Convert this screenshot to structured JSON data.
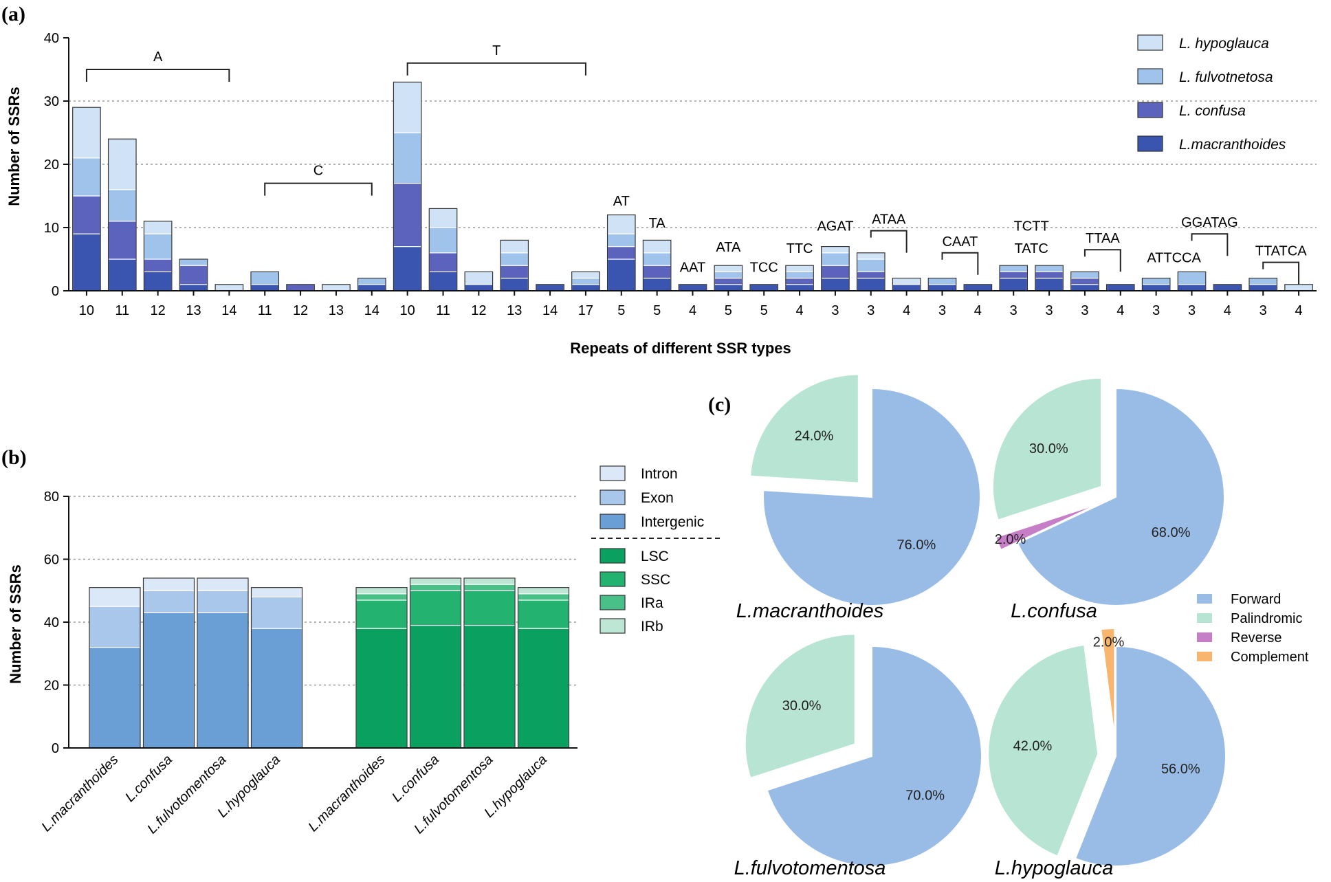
{
  "panel_labels": {
    "a": "(a)",
    "b": "(b)",
    "c": "(c)"
  },
  "colors": {
    "hypoglauca": "#cfe2f6",
    "fulvotnetosa": "#9fc3ea",
    "confusa": "#5b63bd",
    "macranthoides": "#3a55b0",
    "intron": "#dbe8f7",
    "exon": "#a8c7ea",
    "intergenic": "#6a9fd6",
    "lsc": "#0aa05f",
    "ssc": "#24b270",
    "ira": "#48c088",
    "irb": "#bde6d4",
    "forward": "#99bce6",
    "palindromic": "#b7e4d3",
    "reverse": "#c67fc6",
    "complement": "#f7b56e"
  },
  "chart_data": [
    {
      "id": "a",
      "type": "bar",
      "stacked": true,
      "title": "",
      "xlabel": "Repeats of different SSR types",
      "ylabel": "Number of SSRs",
      "ylim": [
        0,
        40
      ],
      "yticks": [
        0,
        10,
        20,
        30,
        40
      ],
      "grid": "dotted horizontal at 10, 20, 30",
      "legend": "top-right",
      "categories": [
        "10",
        "11",
        "12",
        "13",
        "14",
        "11",
        "12",
        "13",
        "14",
        "10",
        "11",
        "12",
        "13",
        "14",
        "17",
        "5",
        "5",
        "4",
        "5",
        "5",
        "4",
        "3",
        "3",
        "4",
        "3",
        "4",
        "3",
        "3",
        "3",
        "4",
        "3",
        "3",
        "4",
        "3",
        "4"
      ],
      "series": [
        {
          "name": "L.macranthoides",
          "color_key": "macranthoides",
          "values": [
            9,
            5,
            3,
            1,
            0,
            1,
            0,
            0,
            1,
            7,
            3,
            1,
            2,
            1,
            1,
            5,
            2,
            1,
            1,
            1,
            1,
            2,
            2,
            1,
            1,
            1,
            2,
            2,
            1,
            1,
            1,
            1,
            1,
            1,
            0
          ]
        },
        {
          "name": "L. confusa",
          "color_key": "confusa",
          "values": [
            6,
            6,
            2,
            3,
            0,
            0,
            1,
            0,
            0,
            10,
            3,
            0,
            2,
            0,
            0,
            2,
            2,
            0,
            1,
            0,
            1,
            2,
            1,
            0,
            0,
            0,
            1,
            1,
            1,
            0,
            0,
            0,
            0,
            0,
            0
          ]
        },
        {
          "name": "L. fulvotnetosa",
          "color_key": "fulvotnetosa",
          "values": [
            6,
            5,
            4,
            1,
            0,
            2,
            0,
            0,
            1,
            8,
            4,
            0,
            2,
            0,
            1,
            2,
            2,
            0,
            1,
            0,
            1,
            2,
            2,
            0,
            1,
            0,
            1,
            1,
            1,
            0,
            1,
            2,
            0,
            1,
            0
          ]
        },
        {
          "name": "L. hypoglauca",
          "color_key": "hypoglauca",
          "values": [
            8,
            8,
            2,
            0,
            1,
            0,
            0,
            1,
            0,
            8,
            3,
            2,
            2,
            0,
            1,
            3,
            2,
            0,
            1,
            0,
            1,
            1,
            1,
            1,
            0,
            0,
            0,
            0,
            0,
            0,
            0,
            0,
            0,
            0,
            1
          ]
        }
      ],
      "legend_labels": [
        "L. hypoglauca",
        "L. fulvotnetosa",
        "L. confusa",
        "L.macranthoides"
      ],
      "annotations": [
        {
          "text": "A",
          "type": "bracket",
          "from": 0,
          "to": 4,
          "y": 35
        },
        {
          "text": "C",
          "type": "bracket",
          "from": 5,
          "to": 8,
          "y": 17
        },
        {
          "text": "T",
          "type": "bracket",
          "from": 9,
          "to": 14,
          "y": 36
        },
        {
          "text": "AT",
          "type": "label",
          "at": 15,
          "y": 13.5
        },
        {
          "text": "TA",
          "type": "label",
          "at": 16,
          "y": 10
        },
        {
          "text": "AAT",
          "type": "label",
          "at": 17,
          "y": 3
        },
        {
          "text": "ATA",
          "type": "label",
          "at": 18,
          "y": 6.2
        },
        {
          "text": "TCC",
          "type": "label",
          "at": 19,
          "y": 3
        },
        {
          "text": "TTC",
          "type": "label",
          "at": 20,
          "y": 6
        },
        {
          "text": "AGAT",
          "type": "label",
          "at": 21,
          "y": 9.5
        },
        {
          "text": "ATAA",
          "type": "hook",
          "from": 22,
          "to": 23,
          "y": 9.5
        },
        {
          "text": "CAAT",
          "type": "hook",
          "from": 24,
          "to": 25,
          "y": 6
        },
        {
          "text": "TATC",
          "type": "label",
          "at": 26.5,
          "y": 6
        },
        {
          "text": "TCTT",
          "type": "label",
          "at": 26.5,
          "y": 9.5
        },
        {
          "text": "TTAA",
          "type": "hook",
          "from": 28,
          "to": 29,
          "y": 6.5
        },
        {
          "text": "ATTCCA",
          "type": "label",
          "at": 30.5,
          "y": 4.5
        },
        {
          "text": "GGATAG",
          "type": "hook",
          "from": 31,
          "to": 32,
          "y": 9
        },
        {
          "text": "TTATCA",
          "type": "hook",
          "from": 33,
          "to": 34,
          "y": 4.5
        }
      ]
    },
    {
      "id": "b",
      "type": "bar",
      "stacked": true,
      "title": "",
      "xlabel": "",
      "ylabel": "Number of SSRs",
      "ylim": [
        0,
        80
      ],
      "yticks": [
        0,
        20,
        40,
        60,
        80
      ],
      "grid": "dotted horizontal at 20, 40, 60",
      "legend": "top-right",
      "groups": [
        {
          "categories": [
            "L.macranthoides",
            "L.confusa",
            "L.fulvotomentosa",
            "L.hypoglauca"
          ],
          "series": [
            {
              "name": "Intergenic",
              "color_key": "intergenic",
              "values": [
                32,
                43,
                43,
                38
              ]
            },
            {
              "name": "Exon",
              "color_key": "exon",
              "values": [
                13,
                7,
                7,
                10
              ]
            },
            {
              "name": "Intron",
              "color_key": "intron",
              "values": [
                6,
                4,
                4,
                3
              ]
            }
          ]
        },
        {
          "categories": [
            "L.macranthoides",
            "L.confusa",
            "L.fulvotomentosa",
            "L.hypoglauca"
          ],
          "series": [
            {
              "name": "LSC",
              "color_key": "lsc",
              "values": [
                38,
                39,
                39,
                38
              ]
            },
            {
              "name": "SSC",
              "color_key": "ssc",
              "values": [
                9,
                11,
                11,
                9
              ]
            },
            {
              "name": "IRa",
              "color_key": "ira",
              "values": [
                2,
                2,
                2,
                2
              ]
            },
            {
              "name": "IRb",
              "color_key": "irb",
              "values": [
                2,
                2,
                2,
                2
              ]
            }
          ]
        }
      ],
      "legend_labels": [
        "Intron",
        "Exon",
        "Intergenic",
        "LSC",
        "SSC",
        "IRa",
        "IRb"
      ]
    },
    {
      "id": "c",
      "type": "pie",
      "title": "",
      "legend": "center-right",
      "legend_labels": [
        "Forward",
        "Palindromic",
        "Reverse",
        "Complement"
      ],
      "pies": [
        {
          "name": "L.macranthoides",
          "slices": [
            {
              "label": "Forward",
              "value": 76.0,
              "text": "76.0%",
              "color_key": "forward"
            },
            {
              "label": "Palindromic",
              "value": 24.0,
              "text": "24.0%",
              "color_key": "palindromic",
              "exploded": true
            }
          ]
        },
        {
          "name": "L.confusa",
          "slices": [
            {
              "label": "Forward",
              "value": 68.0,
              "text": "68.0%",
              "color_key": "forward"
            },
            {
              "label": "Reverse",
              "value": 2.0,
              "text": "2.0%",
              "color_key": "reverse",
              "exploded": true
            },
            {
              "label": "Palindromic",
              "value": 30.0,
              "text": "30.0%",
              "color_key": "palindromic",
              "exploded": true
            }
          ]
        },
        {
          "name": "L.fulvotomentosa",
          "slices": [
            {
              "label": "Forward",
              "value": 70.0,
              "text": "70.0%",
              "color_key": "forward"
            },
            {
              "label": "Palindromic",
              "value": 30.0,
              "text": "30.0%",
              "color_key": "palindromic",
              "exploded": true
            }
          ]
        },
        {
          "name": "L.hypoglauca",
          "slices": [
            {
              "label": "Forward",
              "value": 56.0,
              "text": "56.0%",
              "color_key": "forward"
            },
            {
              "label": "Palindromic",
              "value": 42.0,
              "text": "42.0%",
              "color_key": "palindromic",
              "exploded": true
            },
            {
              "label": "Complement",
              "value": 2.0,
              "text": "2.0%",
              "color_key": "complement",
              "exploded": true
            }
          ]
        }
      ]
    }
  ]
}
